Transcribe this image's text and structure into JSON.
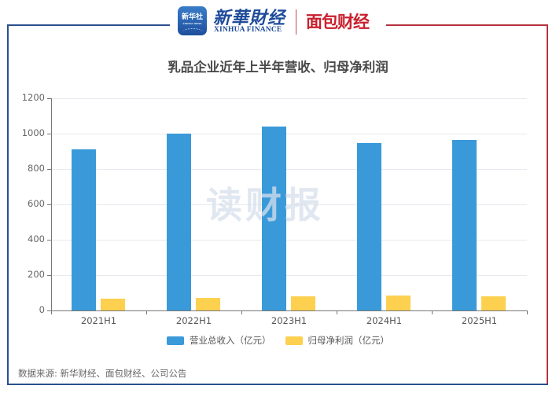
{
  "header": {
    "xinhua_badge_text": "新华社",
    "xinhua_badge_sub": "XINHUA NEWS",
    "xinhua_finance_cn": "新華財经",
    "xinhua_finance_en": "XINHUA FINANCE",
    "mianbao_logo": "面包财经"
  },
  "watermark": "读财报",
  "source": "数据来源: 新华财经、面包财经、公司公告",
  "colors": {
    "revenue": "#3a9ad9",
    "net_profit": "#fdd04f",
    "frame_blue": "#2b4f8f",
    "frame_red": "#b5323c"
  },
  "chart_data": {
    "type": "bar",
    "title": "乳品企业近年上半年营收、归母净利润",
    "categories": [
      "2021H1",
      "2022H1",
      "2023H1",
      "2024H1",
      "2025H1"
    ],
    "series": [
      {
        "name": "营业总收入（亿元）",
        "values": [
          911,
          1002,
          1040,
          945,
          963
        ]
      },
      {
        "name": "归母净利润（亿元）",
        "values": [
          68,
          73,
          79,
          85,
          82
        ]
      }
    ],
    "xlabel": "",
    "ylabel": "",
    "ylim": [
      0,
      1200
    ],
    "yticks": [
      0,
      200,
      400,
      600,
      800,
      1000,
      1200
    ],
    "grid": true,
    "legend_position": "bottom"
  }
}
